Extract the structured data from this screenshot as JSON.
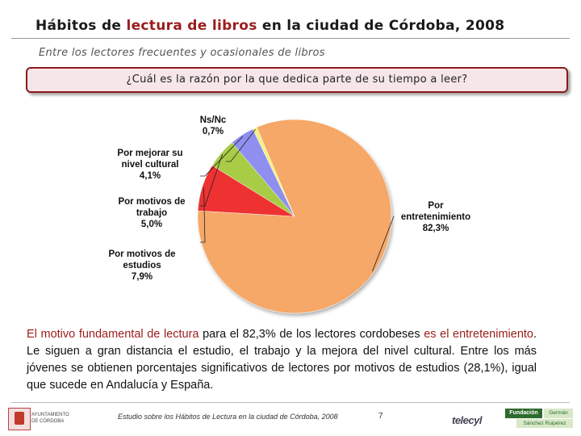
{
  "header": {
    "title_pre": "Hábitos de ",
    "title_hl": "lectura de libros",
    "title_post": " en la ciudad de Córdoba, 2008",
    "subtitle": "Entre los lectores frecuentes y ocasionales de libros",
    "question": "¿Cuál es la razón por la que dedica parte de su tiempo a leer?"
  },
  "chart_data": {
    "type": "pie",
    "title": "",
    "slices": [
      {
        "label_lines": [
          "Por",
          "entretenimiento"
        ],
        "value_label": "82,3%",
        "value": 82.3,
        "color": "#f5a868"
      },
      {
        "label_lines": [
          "Por motivos de",
          "estudios"
        ],
        "value_label": "7,9%",
        "value": 7.9,
        "color": "#ee3333"
      },
      {
        "label_lines": [
          "Por motivos de",
          "trabajo"
        ],
        "value_label": "5,0%",
        "value": 5.0,
        "color": "#a8cc44"
      },
      {
        "label_lines": [
          "Por mejorar su",
          "nivel cultural"
        ],
        "value_label": "4,1%",
        "value": 4.1,
        "color": "#8f8ff0"
      },
      {
        "label_lines": [
          "Ns/Nc"
        ],
        "value_label": "0,7%",
        "value": 0.7,
        "color": "#f4f080"
      }
    ]
  },
  "body": {
    "p1_red": "El motivo fundamental de lectura",
    "p1_mid": " para el 82,3% de los lectores cordobeses ",
    "p1_red2": "es el entretenimiento",
    "p1_rest": ". Le siguen a gran distancia el estudio, el trabajo y la mejora del nivel cultural. Entre los más jóvenes se obtienen porcentajes significativos de lectores por motivos de estudios (28,1%), igual que sucede en Andalucía y España."
  },
  "footer": {
    "text": "Estudio sobre los Hábitos de Lectura en la ciudad de Córdoba, 2008",
    "page": "7",
    "ayto_line1": "AYUNTAMIENTO",
    "ayto_line2": "DE CÓRDOBA",
    "telecyl": "telecyl",
    "fund_a": "Fundación",
    "fund_b": "Germán",
    "fund_c": "Sánchez Ruipérez"
  }
}
